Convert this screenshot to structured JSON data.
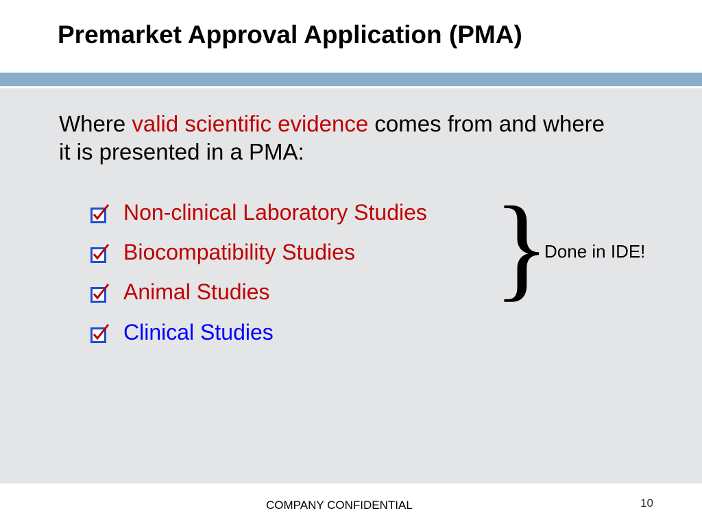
{
  "slide": {
    "title": "Premarket Approval Application (PMA)",
    "intro": {
      "part1": "Where ",
      "highlight": "valid scientific evidence",
      "part2": " comes from and where it is presented in a PMA:"
    },
    "items": [
      {
        "label": "Non-clinical Laboratory Studies",
        "color": "#c00000",
        "checked": true
      },
      {
        "label": "Biocompatibility Studies",
        "color": "#c00000",
        "checked": true
      },
      {
        "label": "Animal Studies",
        "color": "#c00000",
        "checked": true
      },
      {
        "label": "Clinical Studies",
        "color": "#0000ff",
        "checked": true
      }
    ],
    "brace_note": "Done in IDE!",
    "footer": "COMPANY CONFIDENTIAL",
    "page_number": "10"
  },
  "colors": {
    "accent_band": "#89acc9",
    "content_bg": "#e4e5e7",
    "highlight_red": "#c00000",
    "link_blue": "#0000ff",
    "checkbox_blue": "#1f4fd1"
  }
}
